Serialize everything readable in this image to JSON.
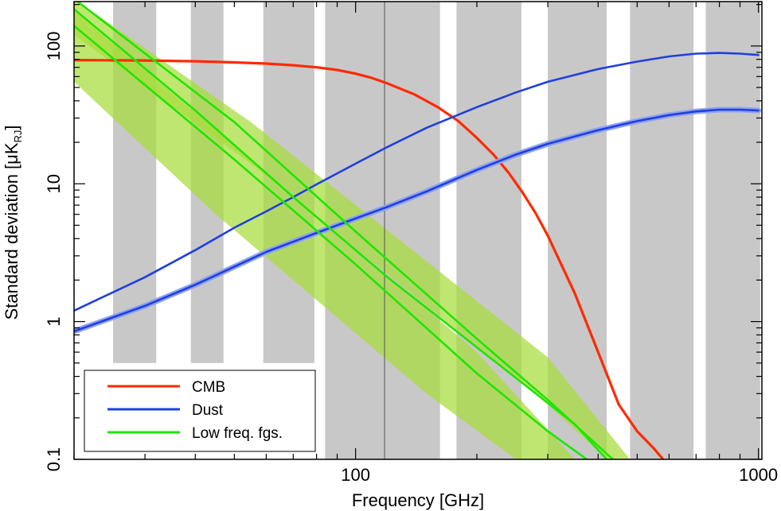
{
  "chart_data": {
    "type": "line",
    "xlabel": "Frequency [GHz]",
    "ylabel_main": "Standard deviation [μK",
    "ylabel_sub": "RJ",
    "ylabel_close": "]",
    "xscale": "log",
    "yscale": "log",
    "xlim": [
      20,
      1020
    ],
    "ylim": [
      0.1,
      210
    ],
    "xticks": [
      {
        "value": 100,
        "label": "100"
      },
      {
        "value": 1000,
        "label": "1000"
      }
    ],
    "yticks": [
      {
        "value": 0.1,
        "label": "0.1"
      },
      {
        "value": 1,
        "label": "1"
      },
      {
        "value": 10,
        "label": "10"
      },
      {
        "value": 100,
        "label": "100"
      }
    ],
    "reference_line_x": 118,
    "frequency_bands": [
      {
        "lo": 25,
        "hi": 32,
        "ylo": 0.5
      },
      {
        "lo": 39,
        "hi": 47,
        "ylo": 0.5
      },
      {
        "lo": 59,
        "hi": 79,
        "ylo": 0.5
      },
      {
        "lo": 84,
        "hi": 162,
        "ylo": 0.1
      },
      {
        "lo": 178,
        "hi": 258,
        "ylo": 0.1
      },
      {
        "lo": 300,
        "hi": 420,
        "ylo": 0.1
      },
      {
        "lo": 480,
        "hi": 690,
        "ylo": 0.1
      },
      {
        "lo": 740,
        "hi": 1010,
        "ylo": 0.1
      }
    ],
    "bands_shaded": [
      {
        "name": "low-freq-upper",
        "color": "#a8dc3c",
        "upper": [
          [
            20,
            220
          ],
          [
            55,
            28
          ],
          [
            300,
            0.55
          ],
          [
            480,
            0.1
          ]
        ],
        "lower": [
          [
            20,
            120
          ],
          [
            55,
            14
          ],
          [
            300,
            0.25
          ],
          [
            420,
            0.1
          ]
        ]
      },
      {
        "name": "low-freq-lower",
        "color": "#a8dc3c",
        "upper": [
          [
            20,
            180
          ],
          [
            60,
            12
          ],
          [
            200,
            0.6
          ],
          [
            350,
            0.1
          ]
        ],
        "lower": [
          [
            20,
            55
          ],
          [
            45,
            6
          ],
          [
            150,
            0.3
          ],
          [
            250,
            0.1
          ]
        ]
      }
    ],
    "series": [
      {
        "name": "CMB",
        "legend": "CMB",
        "color": "#ff2a00",
        "width": 3.2,
        "points": [
          [
            20,
            79
          ],
          [
            30,
            78.5
          ],
          [
            40,
            77.5
          ],
          [
            50,
            76
          ],
          [
            60,
            74.5
          ],
          [
            70,
            72.5
          ],
          [
            80,
            70
          ],
          [
            90,
            67
          ],
          [
            100,
            63
          ],
          [
            110,
            58.5
          ],
          [
            120,
            53.5
          ],
          [
            140,
            44.5
          ],
          [
            160,
            36
          ],
          [
            180,
            28.5
          ],
          [
            200,
            21.5
          ],
          [
            220,
            16.3
          ],
          [
            240,
            12
          ],
          [
            260,
            8.6
          ],
          [
            280,
            6.1
          ],
          [
            300,
            4.2
          ],
          [
            350,
            1.6
          ],
          [
            400,
            0.6
          ],
          [
            450,
            0.25
          ],
          [
            500,
            0.16
          ],
          [
            550,
            0.12
          ],
          [
            580,
            0.1
          ]
        ]
      },
      {
        "name": "Dust",
        "legend": "Dust",
        "color": "#1f3fe0",
        "width": 2.6,
        "points": [
          [
            20,
            1.2
          ],
          [
            30,
            2.1
          ],
          [
            40,
            3.3
          ],
          [
            50,
            4.8
          ],
          [
            60,
            6.3
          ],
          [
            70,
            8.0
          ],
          [
            80,
            9.9
          ],
          [
            100,
            14
          ],
          [
            120,
            18.5
          ],
          [
            150,
            25.5
          ],
          [
            200,
            36
          ],
          [
            250,
            46
          ],
          [
            300,
            55
          ],
          [
            400,
            68
          ],
          [
            500,
            77
          ],
          [
            600,
            84
          ],
          [
            700,
            88
          ],
          [
            800,
            89
          ],
          [
            900,
            88
          ],
          [
            1000,
            86
          ]
        ]
      },
      {
        "name": "Dust-2",
        "legend": "",
        "color": "#1f3fe0",
        "width": 2.6,
        "halo": "#8fa3f0",
        "points": [
          [
            20,
            0.85
          ],
          [
            30,
            1.3
          ],
          [
            40,
            1.85
          ],
          [
            50,
            2.5
          ],
          [
            60,
            3.2
          ],
          [
            80,
            4.4
          ],
          [
            100,
            5.6
          ],
          [
            120,
            6.8
          ],
          [
            150,
            8.8
          ],
          [
            200,
            12.6
          ],
          [
            250,
            16.3
          ],
          [
            300,
            19.5
          ],
          [
            400,
            24.5
          ],
          [
            500,
            28.5
          ],
          [
            600,
            31.5
          ],
          [
            700,
            33.5
          ],
          [
            800,
            34.5
          ],
          [
            900,
            34.5
          ],
          [
            1000,
            34
          ]
        ]
      },
      {
        "name": "LowFreq-1",
        "legend": "Low freq. fgs.",
        "color": "#1ee600",
        "width": 2.6,
        "points": [
          [
            20,
            220
          ],
          [
            50,
            28
          ],
          [
            100,
            4.5
          ],
          [
            200,
            0.75
          ],
          [
            300,
            0.27
          ],
          [
            435,
            0.1
          ]
        ]
      },
      {
        "name": "LowFreq-2",
        "legend": "",
        "color": "#1ee600",
        "width": 2.6,
        "points": [
          [
            20,
            140
          ],
          [
            50,
            15
          ],
          [
            100,
            2.6
          ],
          [
            200,
            0.42
          ],
          [
            300,
            0.16
          ],
          [
            375,
            0.1
          ]
        ]
      },
      {
        "name": "LowFreq-3",
        "legend": "",
        "color": "#1ee600",
        "width": 2.6,
        "points": [
          [
            20,
            185
          ],
          [
            40,
            34
          ],
          [
            70,
            8
          ],
          [
            120,
            2.1
          ],
          [
            200,
            0.65
          ],
          [
            350,
            0.18
          ],
          [
            420,
            0.1
          ]
        ]
      }
    ]
  }
}
